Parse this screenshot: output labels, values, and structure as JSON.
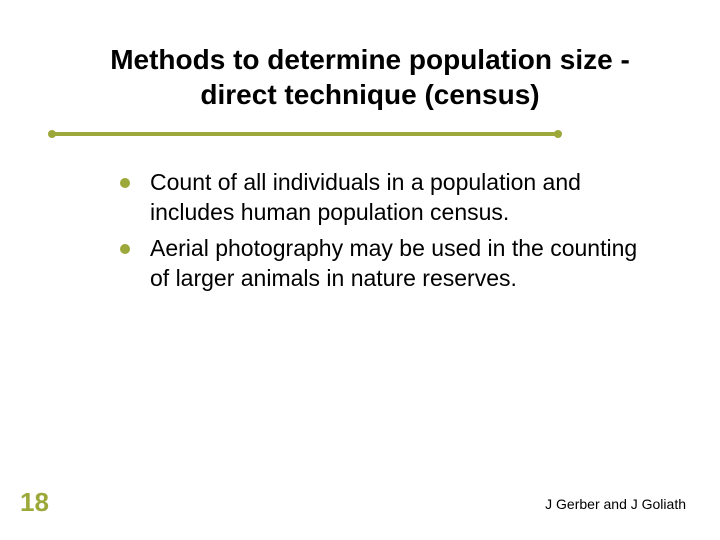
{
  "slide": {
    "title": "Methods to determine population size - direct technique (census)",
    "bullets": [
      "Count of all individuals in a population and includes human population census.",
      "Aerial photography may be used in the counting of larger animals in nature reserves."
    ],
    "page_number": "18",
    "footer": "J Gerber and J Goliath"
  },
  "style": {
    "accent_color": "#9ca83a",
    "title_color": "#000000",
    "body_color": "#000000",
    "background_color": "#ffffff",
    "title_fontsize": 28,
    "body_fontsize": 23,
    "pagenum_fontsize": 26,
    "footer_fontsize": 14
  }
}
